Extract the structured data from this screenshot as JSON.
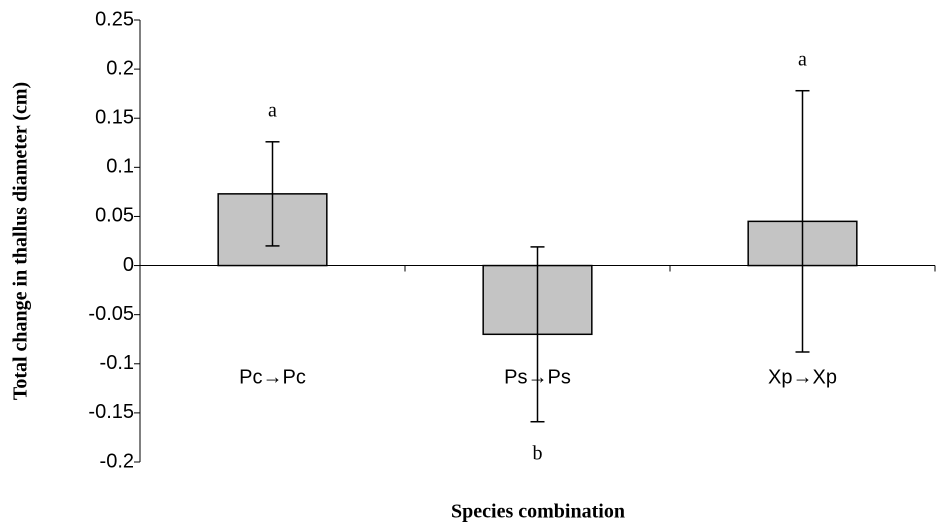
{
  "chart_data": {
    "type": "bar",
    "categories": [
      "Pc→Pc",
      "Ps→Ps",
      "Xp→Xp"
    ],
    "values": [
      0.073,
      -0.07,
      0.045
    ],
    "errors": [
      0.053,
      0.089,
      0.133
    ],
    "annotations": [
      "a",
      "b",
      "a"
    ],
    "color": "#c4c4c4",
    "ylim": [
      -0.2,
      0.25
    ],
    "yticks": [
      -0.2,
      -0.15,
      -0.1,
      -0.05,
      0,
      0.05,
      0.1,
      0.15,
      0.2,
      0.25
    ],
    "ylabel": "Total change in thallus diameter (cm)",
    "xlabel": "Species combination"
  }
}
